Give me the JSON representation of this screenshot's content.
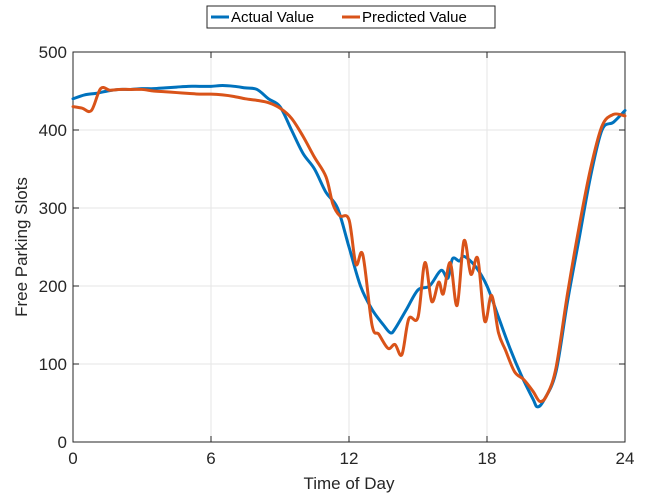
{
  "chart_data": {
    "type": "line",
    "title": "",
    "xlabel": "Time of Day",
    "ylabel": "Free Parking Slots",
    "xlim": [
      0,
      24
    ],
    "ylim": [
      0,
      500
    ],
    "xticks": [
      0,
      6,
      12,
      18,
      24
    ],
    "yticks": [
      0,
      100,
      200,
      300,
      400,
      500
    ],
    "grid": true,
    "legend": {
      "placement": "top-center-outside",
      "orientation": "horizontal"
    },
    "series": [
      {
        "name": "Actual Value",
        "color": "#0072BD",
        "x": [
          0,
          0.5,
          1,
          1.5,
          2,
          2.5,
          3,
          3.5,
          4,
          4.5,
          5,
          5.5,
          6,
          6.5,
          7,
          7.5,
          8,
          8.5,
          9,
          9.5,
          10,
          10.5,
          11,
          11.5,
          12,
          12.5,
          13,
          13.5,
          13.8,
          14,
          14.5,
          15,
          15.5,
          16,
          16.3,
          16.5,
          16.8,
          17,
          17.5,
          18,
          18.5,
          19,
          19.5,
          20,
          20.2,
          20.5,
          21,
          21.5,
          22,
          22.5,
          23,
          23.5,
          24
        ],
        "y": [
          440,
          445,
          447,
          450,
          452,
          452,
          453,
          453,
          454,
          455,
          456,
          456,
          456,
          457,
          456,
          454,
          452,
          440,
          430,
          400,
          370,
          350,
          320,
          300,
          250,
          200,
          170,
          150,
          140,
          145,
          170,
          195,
          200,
          220,
          210,
          235,
          232,
          238,
          225,
          200,
          160,
          120,
          85,
          55,
          45,
          55,
          90,
          180,
          260,
          340,
          400,
          410,
          425
        ]
      },
      {
        "name": "Predicted Value",
        "color": "#D95319",
        "x": [
          0,
          0.4,
          0.8,
          1.2,
          1.6,
          2,
          2.5,
          3,
          3.5,
          4,
          4.5,
          5,
          5.5,
          6,
          6.5,
          7,
          7.5,
          8,
          8.5,
          9,
          9.5,
          10,
          10.5,
          11,
          11.3,
          11.6,
          12,
          12.3,
          12.6,
          13,
          13.3,
          13.7,
          14,
          14.3,
          14.6,
          15,
          15.3,
          15.6,
          15.9,
          16.1,
          16.4,
          16.7,
          17,
          17.3,
          17.6,
          17.9,
          18.2,
          18.5,
          18.8,
          19.2,
          19.6,
          20,
          20.3,
          20.6,
          21,
          21.5,
          22,
          22.5,
          23,
          23.5,
          24
        ],
        "y": [
          430,
          428,
          425,
          453,
          451,
          452,
          452,
          452,
          450,
          449,
          448,
          447,
          446,
          446,
          445,
          443,
          440,
          438,
          435,
          428,
          415,
          392,
          365,
          340,
          305,
          290,
          285,
          228,
          240,
          150,
          138,
          120,
          125,
          112,
          158,
          160,
          230,
          180,
          205,
          190,
          230,
          175,
          258,
          215,
          235,
          155,
          188,
          140,
          118,
          90,
          80,
          65,
          52,
          60,
          95,
          190,
          275,
          350,
          405,
          420,
          418
        ]
      }
    ]
  }
}
